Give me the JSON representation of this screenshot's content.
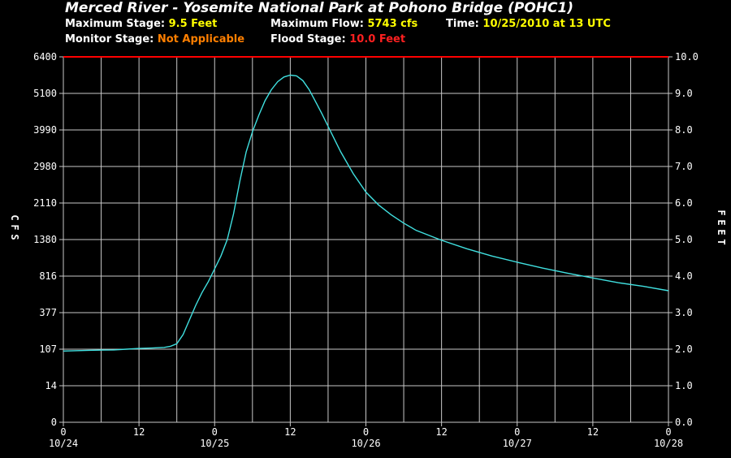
{
  "header": {
    "title": "Merced River - Yosemite National Park at Pohono Bridge (POHC1)",
    "max_stage_label": "Maximum Stage:",
    "max_stage_value": "9.5 Feet",
    "max_flow_label": "Maximum Flow:",
    "max_flow_value": "5743 cfs",
    "time_label": "Time:",
    "time_value": "10/25/2010 at 13 UTC",
    "monitor_label": "Monitor Stage:",
    "monitor_value": "Not Applicable",
    "flood_label": "Flood Stage:",
    "flood_value": "10.0 Feet"
  },
  "colors": {
    "background": "#000000",
    "grid": "#c8c8c8",
    "flow_line": "#40e0e0",
    "flood_line": "#ff0000",
    "highlight_yellow": "#ffff00",
    "highlight_orange": "#ff7f00",
    "highlight_red": "#ff2020"
  },
  "chart_data": {
    "type": "line",
    "xlabel": "",
    "ylabel_left": "CFS",
    "ylabel_right": "FEET",
    "x_ticks": [
      "0",
      "12",
      "0",
      "12",
      "0",
      "12",
      "0",
      "12",
      "0"
    ],
    "x_dates": [
      "10/24",
      "10/25",
      "10/26",
      "10/27",
      "10/28"
    ],
    "left_ticks": [
      "0",
      "14",
      "107",
      "377",
      "816",
      "1380",
      "2110",
      "2980",
      "3990",
      "5100",
      "6400"
    ],
    "right_ticks": [
      "0.0",
      "1.0",
      "2.0",
      "3.0",
      "4.0",
      "5.0",
      "6.0",
      "7.0",
      "8.0",
      "9.0",
      "10.0"
    ],
    "x_range_hours": [
      0,
      96
    ],
    "stage_range_feet": [
      0,
      10
    ],
    "grid": true,
    "flood_stage_feet": 10.0,
    "series": [
      {
        "units": "feet",
        "x_hours": [
          0,
          4,
          8,
          10,
          12,
          14,
          16,
          17,
          18,
          19,
          20,
          21,
          22,
          23,
          24,
          25,
          26,
          27,
          28,
          29,
          30,
          31,
          32,
          33,
          34,
          35,
          36,
          37,
          38,
          39,
          40,
          41,
          42,
          43,
          44,
          46,
          48,
          50,
          52,
          54,
          56,
          60,
          64,
          68,
          72,
          76,
          80,
          84,
          88,
          92,
          96
        ],
        "stage_feet": [
          1.95,
          1.97,
          1.98,
          2.0,
          2.02,
          2.03,
          2.05,
          2.08,
          2.15,
          2.4,
          2.8,
          3.2,
          3.55,
          3.85,
          4.2,
          4.55,
          5.0,
          5.7,
          6.6,
          7.4,
          7.95,
          8.4,
          8.8,
          9.1,
          9.32,
          9.45,
          9.5,
          9.48,
          9.35,
          9.1,
          8.78,
          8.45,
          8.1,
          7.75,
          7.4,
          6.8,
          6.3,
          5.95,
          5.68,
          5.45,
          5.25,
          4.98,
          4.75,
          4.55,
          4.38,
          4.22,
          4.08,
          3.95,
          3.82,
          3.72,
          3.6
        ]
      }
    ]
  }
}
